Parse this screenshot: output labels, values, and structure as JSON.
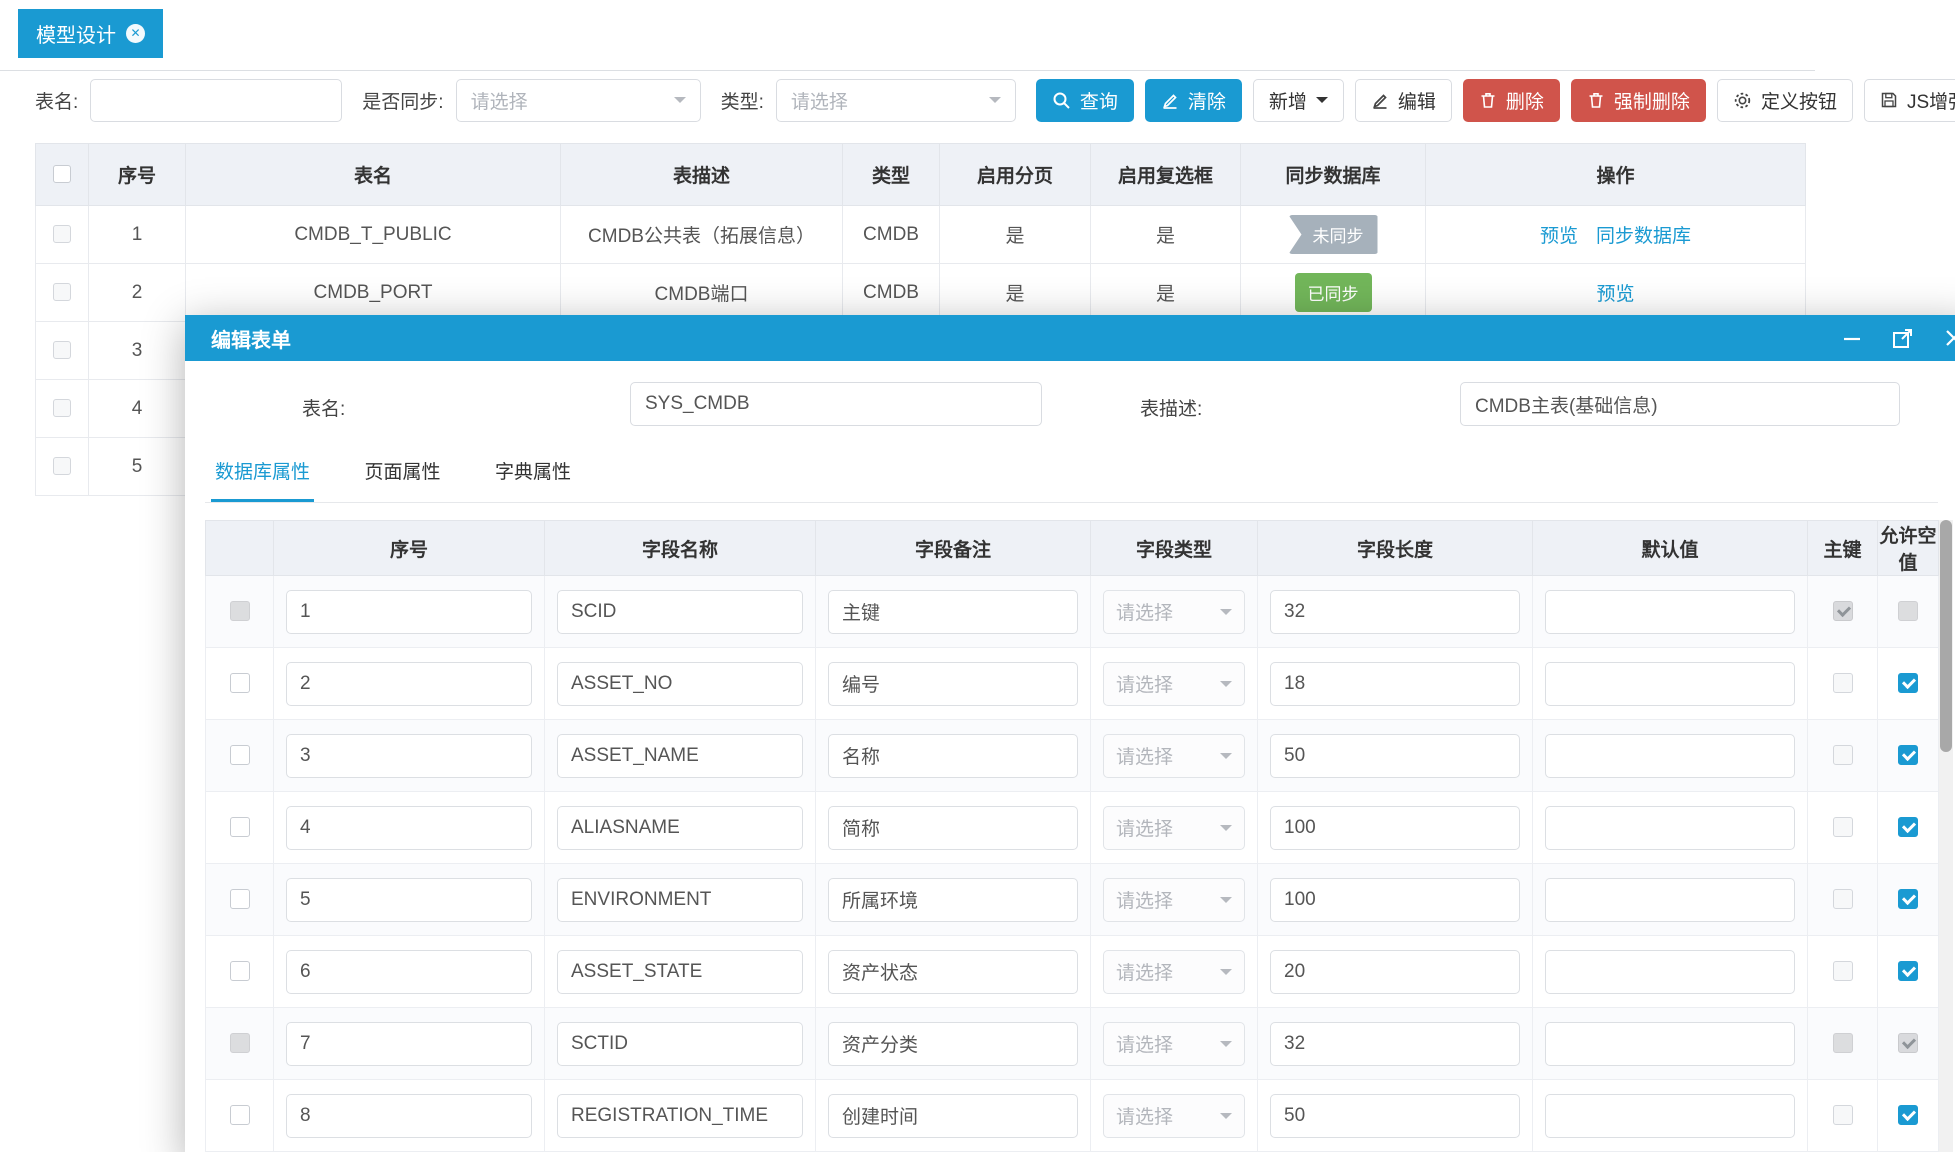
{
  "tab_bar": {
    "active_tab": "模型设计"
  },
  "filters": {
    "table_name_label": "表名:",
    "sync_label": "是否同步:",
    "type_label": "类型:",
    "select_placeholder": "请选择",
    "table_name_value": "",
    "buttons": {
      "search": "查询",
      "clear": "清除",
      "add": "新增",
      "edit": "编辑",
      "delete": "删除",
      "force_delete": "强制删除",
      "define_button": "定义按钮",
      "js_enhance": "JS增强"
    }
  },
  "main_table": {
    "headers": [
      "序号",
      "表名",
      "表描述",
      "类型",
      "启用分页",
      "启用复选框",
      "同步数据库",
      "操作"
    ],
    "rows": [
      {
        "seq": "1",
        "name": "CMDB_T_PUBLIC",
        "desc": "CMDB公共表（拓展信息）",
        "type": "CMDB",
        "paging": "是",
        "checkbox": "是",
        "sync_status": "未同步",
        "sync_state": "unsynced",
        "actions": [
          "预览",
          "同步数据库"
        ]
      },
      {
        "seq": "2",
        "name": "CMDB_PORT",
        "desc": "CMDB端口",
        "type": "CMDB",
        "paging": "是",
        "checkbox": "是",
        "sync_status": "已同步",
        "sync_state": "synced",
        "actions": [
          "预览"
        ]
      },
      {
        "seq": "3",
        "name": "",
        "desc": "",
        "type": "",
        "paging": "",
        "checkbox": "",
        "sync_status": "",
        "sync_state": "none",
        "actions": []
      },
      {
        "seq": "4",
        "name": "",
        "desc": "",
        "type": "",
        "paging": "",
        "checkbox": "",
        "sync_status": "",
        "sync_state": "none",
        "actions": []
      },
      {
        "seq": "5",
        "name": "",
        "desc": "",
        "type": "",
        "paging": "",
        "checkbox": "",
        "sync_status": "",
        "sync_state": "none",
        "actions": []
      }
    ]
  },
  "modal": {
    "title": "编辑表单",
    "form": {
      "table_name_label": "表名:",
      "table_name_value": "SYS_CMDB",
      "table_desc_label": "表描述:",
      "table_desc_value": "CMDB主表(基础信息)"
    },
    "tabs": [
      "数据库属性",
      "页面属性",
      "字典属性"
    ],
    "active_tab": "数据库属性",
    "fields": {
      "headers": [
        "序号",
        "字段名称",
        "字段备注",
        "字段类型",
        "字段长度",
        "默认值",
        "主键",
        "允许空值"
      ],
      "select_placeholder": "请选择",
      "rows": [
        {
          "seq": "1",
          "name": "SCID",
          "comment": "主键",
          "length": "32",
          "default": "",
          "row_disabled": true,
          "pk_checked": true,
          "pk_disabled": true,
          "nullable_checked": false,
          "nullable_disabled": true
        },
        {
          "seq": "2",
          "name": "ASSET_NO",
          "comment": "编号",
          "length": "18",
          "default": "",
          "row_disabled": false,
          "pk_checked": false,
          "pk_disabled": false,
          "nullable_checked": true,
          "nullable_disabled": false
        },
        {
          "seq": "3",
          "name": "ASSET_NAME",
          "comment": "名称",
          "length": "50",
          "default": "",
          "row_disabled": false,
          "pk_checked": false,
          "pk_disabled": false,
          "nullable_checked": true,
          "nullable_disabled": false
        },
        {
          "seq": "4",
          "name": "ALIASNAME",
          "comment": "简称",
          "length": "100",
          "default": "",
          "row_disabled": false,
          "pk_checked": false,
          "pk_disabled": false,
          "nullable_checked": true,
          "nullable_disabled": false
        },
        {
          "seq": "5",
          "name": "ENVIRONMENT",
          "comment": "所属环境",
          "length": "100",
          "default": "",
          "row_disabled": false,
          "pk_checked": false,
          "pk_disabled": false,
          "nullable_checked": true,
          "nullable_disabled": false
        },
        {
          "seq": "6",
          "name": "ASSET_STATE",
          "comment": "资产状态",
          "length": "20",
          "default": "",
          "row_disabled": false,
          "pk_checked": false,
          "pk_disabled": false,
          "nullable_checked": true,
          "nullable_disabled": false
        },
        {
          "seq": "7",
          "name": "SCTID",
          "comment": "资产分类",
          "length": "32",
          "default": "",
          "row_disabled": true,
          "pk_checked": false,
          "pk_disabled": true,
          "nullable_checked": true,
          "nullable_disabled": true
        },
        {
          "seq": "8",
          "name": "REGISTRATION_TIME",
          "comment": "创建时间",
          "length": "50",
          "default": "",
          "row_disabled": false,
          "pk_checked": false,
          "pk_disabled": false,
          "nullable_checked": true,
          "nullable_disabled": false
        }
      ]
    }
  },
  "colors": {
    "primary": "#1a9ad2",
    "danger": "#d0544b",
    "synced_green": "#72b65a",
    "unsynced_gray": "#a6b1bb",
    "header_bg": "#eef1f6"
  }
}
